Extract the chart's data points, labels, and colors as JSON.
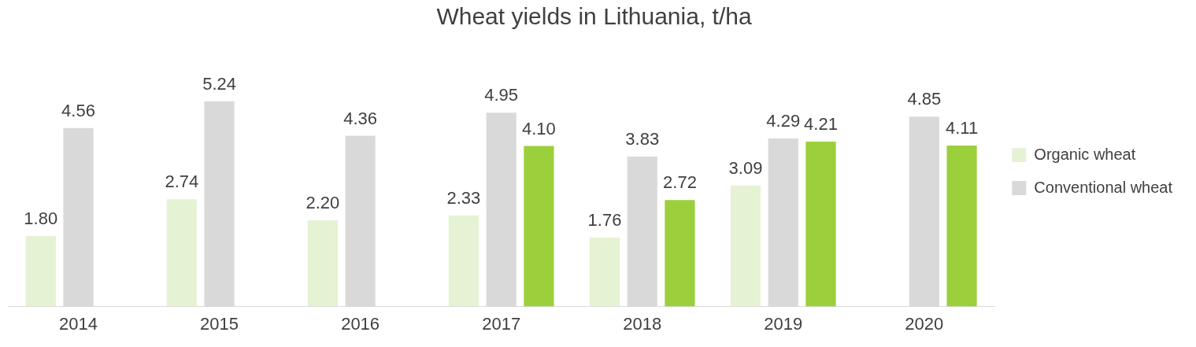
{
  "chart_data": {
    "type": "bar",
    "title": "Wheat yields in Lithuania, t/ha",
    "categories": [
      "2014",
      "2015",
      "2016",
      "2017",
      "2018",
      "2019",
      "2020"
    ],
    "series": [
      {
        "name": "Organic wheat",
        "color": "#e5f2d3",
        "values": [
          1.8,
          2.74,
          2.2,
          2.33,
          1.76,
          3.09,
          null
        ],
        "value_labels": [
          "1.80",
          "2.74",
          "2.20",
          "2.33",
          "1.76",
          "3.09",
          null
        ]
      },
      {
        "name": "Conventional wheat",
        "color": "#d9d9d9",
        "values": [
          4.56,
          5.24,
          4.36,
          4.95,
          3.83,
          4.29,
          4.85
        ],
        "value_labels": [
          "4.56",
          "5.24",
          "4.36",
          "4.95",
          "3.83",
          "4.29",
          "4.85"
        ]
      },
      {
        "color": "#9ccf3c",
        "values": [
          null,
          null,
          null,
          4.1,
          2.72,
          4.21,
          4.11
        ],
        "value_labels": [
          null,
          null,
          null,
          "4.10",
          "2.72",
          "4.21",
          "4.11"
        ]
      }
    ],
    "legend": "right"
  }
}
